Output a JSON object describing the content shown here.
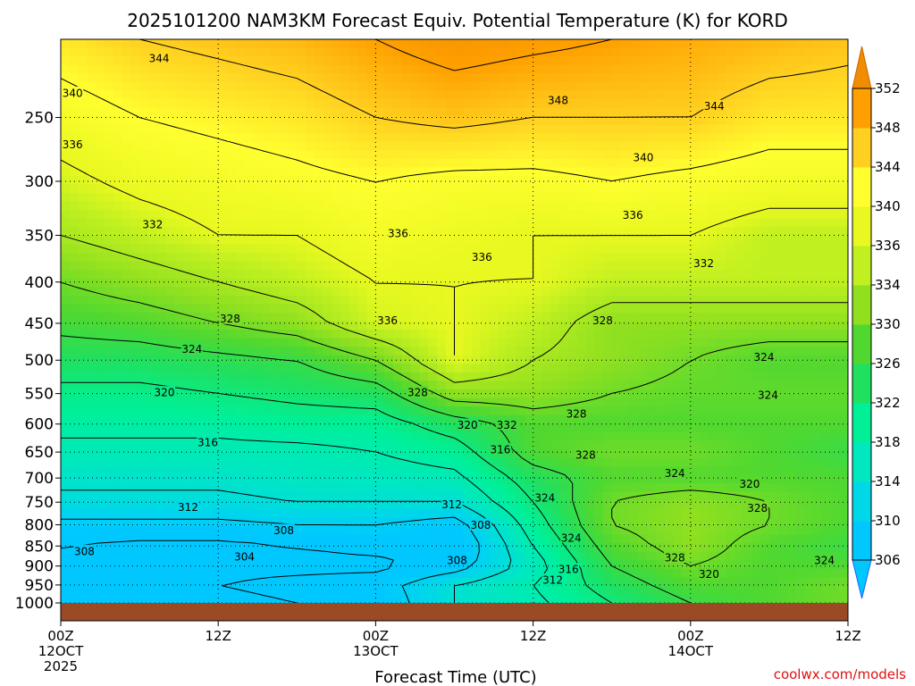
{
  "chart_data": {
    "type": "heatmap",
    "title": "2025101200 NAM3KM Forecast Equiv. Potential Temperature (K) for KORD",
    "xlabel": "Forecast Time (UTC)",
    "ylabel": "",
    "y_axis": {
      "unit": "hPa",
      "scale": "log-pressure",
      "ylim": [
        1000,
        200
      ],
      "ticks": [
        250,
        300,
        350,
        400,
        450,
        500,
        550,
        600,
        650,
        700,
        750,
        800,
        850,
        900,
        950,
        1000
      ]
    },
    "x_axis": {
      "xlim_hours": [
        0,
        60
      ],
      "ticks": [
        {
          "hour": 0,
          "lines": [
            "00Z",
            "12OCT",
            "2025"
          ]
        },
        {
          "hour": 12,
          "lines": [
            "12Z"
          ]
        },
        {
          "hour": 24,
          "lines": [
            "00Z",
            "13OCT"
          ]
        },
        {
          "hour": 36,
          "lines": [
            "12Z"
          ]
        },
        {
          "hour": 48,
          "lines": [
            "00Z",
            "14OCT"
          ]
        },
        {
          "hour": 60,
          "lines": [
            "12Z"
          ]
        }
      ]
    },
    "colorbar": {
      "label": "K",
      "ticks": [
        306,
        310,
        314,
        318,
        322,
        326,
        330,
        334,
        336,
        340,
        344,
        348,
        352
      ],
      "colors": [
        "#00c8ff",
        "#00d8e8",
        "#00e8c0",
        "#00f098",
        "#20e060",
        "#50d830",
        "#90e020",
        "#c0f020",
        "#e8f820",
        "#ffff30",
        "#ffd020",
        "#ffa000",
        "#f08c00"
      ]
    },
    "grid": true,
    "surface_pressure_hpa": 1000,
    "surface_color": "#9b4a26",
    "contour_interval_K": 4,
    "hours": [
      0,
      6,
      12,
      18,
      24,
      30,
      36,
      42,
      48,
      54,
      60
    ],
    "pressure_levels": [
      1000,
      950,
      900,
      850,
      800,
      750,
      700,
      650,
      600,
      550,
      500,
      450,
      400,
      350,
      300,
      250,
      200
    ],
    "theta_e_K": [
      [
        302,
        303,
        303,
        304,
        305,
        312,
        315,
        320,
        324,
        326,
        328
      ],
      [
        303,
        304,
        304,
        305,
        306,
        312,
        316,
        322,
        326,
        326,
        328
      ],
      [
        303,
        303,
        303,
        303,
        303,
        306,
        314,
        324,
        328,
        326,
        326
      ],
      [
        304,
        303,
        303,
        304,
        305,
        304,
        316,
        326,
        330,
        326,
        324
      ],
      [
        307,
        307,
        307,
        308,
        308,
        306,
        318,
        328,
        330,
        328,
        326
      ],
      [
        311,
        311,
        311,
        312,
        312,
        312,
        320,
        328,
        330,
        328,
        326
      ],
      [
        313,
        313,
        313,
        314,
        314,
        315,
        322,
        326,
        326,
        326,
        326
      ],
      [
        315,
        315,
        315,
        315,
        316,
        318,
        326,
        328,
        328,
        326,
        324
      ],
      [
        317,
        317,
        317,
        318,
        318,
        322,
        326,
        326,
        326,
        326,
        326
      ],
      [
        319,
        319,
        320,
        321,
        322,
        330,
        330,
        328,
        327,
        327,
        327
      ],
      [
        322,
        322,
        323,
        324,
        328,
        336,
        332,
        330,
        328,
        326,
        326
      ],
      [
        325,
        326,
        328,
        330,
        335,
        336,
        334,
        330,
        330,
        330,
        330
      ],
      [
        328,
        330,
        332,
        334,
        336,
        336,
        336,
        334,
        334,
        334,
        334
      ],
      [
        332,
        334,
        336,
        336,
        338,
        337,
        336,
        336,
        336,
        334,
        334
      ],
      [
        335,
        337,
        338,
        339,
        340,
        339,
        339,
        340,
        339,
        338,
        338
      ],
      [
        338,
        340,
        341,
        342,
        344,
        345,
        344,
        344,
        344,
        342,
        342
      ],
      [
        342,
        344,
        345,
        346,
        348,
        350,
        349,
        348,
        347,
        346,
        345
      ]
    ],
    "contour_labels": [
      {
        "text": "344",
        "hour": 7.5,
        "p": 211
      },
      {
        "text": "340",
        "hour": 0.9,
        "p": 233
      },
      {
        "text": "348",
        "hour": 37.9,
        "p": 238
      },
      {
        "text": "344",
        "hour": 49.8,
        "p": 242
      },
      {
        "text": "336",
        "hour": 0.9,
        "p": 270
      },
      {
        "text": "340",
        "hour": 44.4,
        "p": 280
      },
      {
        "text": "336",
        "hour": 43.6,
        "p": 330
      },
      {
        "text": "332",
        "hour": 7.0,
        "p": 339
      },
      {
        "text": "336",
        "hour": 25.7,
        "p": 348
      },
      {
        "text": "336",
        "hour": 32.1,
        "p": 372
      },
      {
        "text": "332",
        "hour": 49.0,
        "p": 379
      },
      {
        "text": "328",
        "hour": 12.9,
        "p": 444
      },
      {
        "text": "336",
        "hour": 24.9,
        "p": 446
      },
      {
        "text": "328",
        "hour": 41.3,
        "p": 446
      },
      {
        "text": "324",
        "hour": 10.0,
        "p": 484
      },
      {
        "text": "324",
        "hour": 53.6,
        "p": 495
      },
      {
        "text": "320",
        "hour": 7.9,
        "p": 548
      },
      {
        "text": "328",
        "hour": 27.2,
        "p": 548
      },
      {
        "text": "324",
        "hour": 53.9,
        "p": 552
      },
      {
        "text": "328",
        "hour": 39.3,
        "p": 582
      },
      {
        "text": "320",
        "hour": 31.0,
        "p": 601
      },
      {
        "text": "332",
        "hour": 34.0,
        "p": 601
      },
      {
        "text": "316",
        "hour": 11.2,
        "p": 632
      },
      {
        "text": "316",
        "hour": 33.5,
        "p": 645
      },
      {
        "text": "328",
        "hour": 40.0,
        "p": 655
      },
      {
        "text": "324",
        "hour": 46.8,
        "p": 690
      },
      {
        "text": "320",
        "hour": 52.5,
        "p": 711
      },
      {
        "text": "324",
        "hour": 36.9,
        "p": 740
      },
      {
        "text": "312",
        "hour": 9.7,
        "p": 760
      },
      {
        "text": "312",
        "hour": 29.8,
        "p": 754
      },
      {
        "text": "328",
        "hour": 53.1,
        "p": 762
      },
      {
        "text": "308",
        "hour": 17.0,
        "p": 812
      },
      {
        "text": "308",
        "hour": 32.0,
        "p": 800
      },
      {
        "text": "324",
        "hour": 38.9,
        "p": 830
      },
      {
        "text": "308",
        "hour": 1.8,
        "p": 862
      },
      {
        "text": "304",
        "hour": 14.0,
        "p": 876
      },
      {
        "text": "308",
        "hour": 30.2,
        "p": 885
      },
      {
        "text": "328",
        "hour": 46.8,
        "p": 878
      },
      {
        "text": "324",
        "hour": 58.2,
        "p": 885
      },
      {
        "text": "316",
        "hour": 38.7,
        "p": 908
      },
      {
        "text": "320",
        "hour": 49.4,
        "p": 921
      },
      {
        "text": "312",
        "hour": 37.5,
        "p": 936
      }
    ]
  },
  "credit": "coolwx.com/models"
}
